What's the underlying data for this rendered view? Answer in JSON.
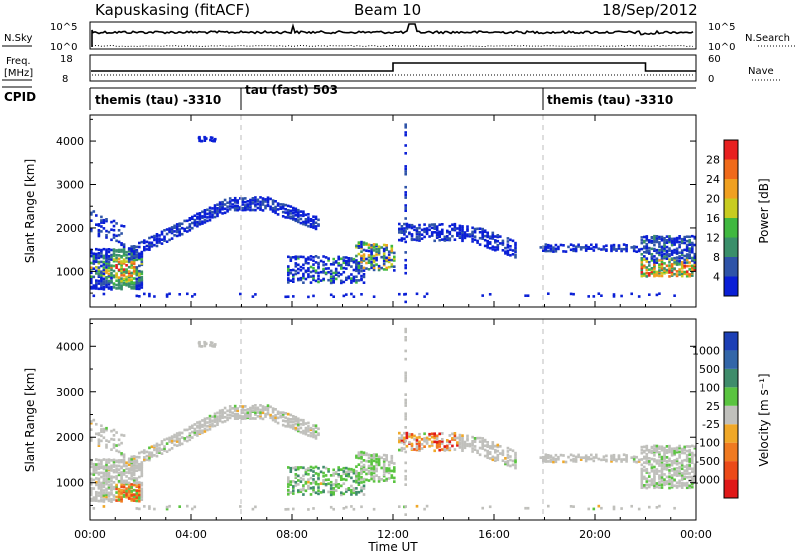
{
  "header": {
    "station": "Kapuskasing (fitACF)",
    "beam": "Beam 10",
    "date": "18/Sep/2012"
  },
  "panels": {
    "nsky": {
      "label": "N.Sky",
      "ticks": [
        "10^5",
        "10^0"
      ],
      "right_label": "N.Search",
      "right_ticks": [
        "10^5",
        "10^0"
      ]
    },
    "freq": {
      "label_line1": "Freq.",
      "label_line2": "[MHz]",
      "ticks": [
        "18",
        "8"
      ],
      "right_label": "Nave",
      "right_ticks": [
        "60",
        "0"
      ],
      "freq_segments": [
        {
          "t0": 0.0,
          "t1": 0.3,
          "level": "low"
        },
        {
          "t0": 0.3,
          "t1": 12.0,
          "level": "low"
        },
        {
          "t0": 12.0,
          "t1": 22.0,
          "level": "high"
        },
        {
          "t0": 22.0,
          "t1": 24.0,
          "level": "low"
        }
      ]
    },
    "cpid": {
      "label": "CPID",
      "modes": [
        {
          "t": 0.15,
          "label": "themis (tau) -3310"
        },
        {
          "t": 6.05,
          "label": "tau (fast) 503"
        },
        {
          "t": 18.05,
          "label": "themis (tau) -3310"
        }
      ],
      "dividers": [
        6.0,
        18.0
      ]
    }
  },
  "xaxis": {
    "label": "Time UT",
    "ticks": [
      "00:00",
      "04:00",
      "08:00",
      "12:00",
      "16:00",
      "20:00",
      "00:00"
    ],
    "tick_hours": [
      0,
      4,
      8,
      12,
      16,
      20,
      24
    ]
  },
  "power_panel": {
    "ylabel": "Slant Range [km]",
    "yticks": [
      "1000",
      "2000",
      "3000",
      "4000"
    ],
    "colorbar": {
      "label": "Power [dB]",
      "ticks": [
        "4",
        "8",
        "12",
        "16",
        "20",
        "24",
        "28"
      ],
      "colors": [
        "#0a1fd6",
        "#2f54a8",
        "#3a8f6a",
        "#40b840",
        "#c8cc20",
        "#f0a020",
        "#f06a1a",
        "#e82020"
      ]
    }
  },
  "velocity_panel": {
    "ylabel": "Slant Range [km]",
    "yticks": [
      "1000",
      "2000",
      "3000",
      "4000"
    ],
    "colorbar": {
      "label": "Velocity [m s⁻¹]",
      "ticks": [
        "1000",
        "500",
        "100",
        "25",
        "-25",
        "-100",
        "-500",
        "-1000"
      ],
      "colors": [
        "#1c3fb5",
        "#3366a8",
        "#3f8c6b",
        "#5ac440",
        "#c0c0bc",
        "#f0a828",
        "#f07a20",
        "#ec4a18",
        "#e01818"
      ]
    }
  },
  "chart_data": {
    "type": "heatmap",
    "title": "Kapuskasing (fitACF) Beam 10 18/Sep/2012",
    "xlabel": "Time UT",
    "ylabel": "Slant Range [km]",
    "xlim": [
      0,
      24
    ],
    "ylim": [
      180,
      4600
    ],
    "echo_regions": [
      {
        "t0": 0.0,
        "t1": 2.1,
        "r0": 600,
        "r1": 1700,
        "power": "mixed-high",
        "velocity": "mixed"
      },
      {
        "t0": 0.0,
        "t1": 1.3,
        "r0": 1700,
        "r1": 2500,
        "power": "low",
        "velocity": "near-zero"
      },
      {
        "t0": 1.5,
        "t1": 9.0,
        "r0": 1300,
        "r1": 2700,
        "power": "low",
        "velocity": "near-zero"
      },
      {
        "t0": 7.8,
        "t1": 10.8,
        "r0": 700,
        "r1": 1400,
        "power": "low-mid",
        "velocity": "positive"
      },
      {
        "t0": 10.5,
        "t1": 12.0,
        "r0": 1000,
        "r1": 1800,
        "power": "mid",
        "velocity": "near-zero"
      },
      {
        "t0": 12.2,
        "t1": 16.8,
        "r0": 1400,
        "r1": 2200,
        "power": "low",
        "velocity": "negative"
      },
      {
        "t0": 17.8,
        "t1": 21.8,
        "r0": 1400,
        "r1": 1700,
        "power": "low",
        "velocity": "near-zero"
      },
      {
        "t0": 21.8,
        "t1": 24.0,
        "r0": 900,
        "r1": 2200,
        "power": "mid-high",
        "velocity": "near-zero"
      }
    ],
    "mode_changes_hours": [
      6.0,
      18.0
    ]
  }
}
